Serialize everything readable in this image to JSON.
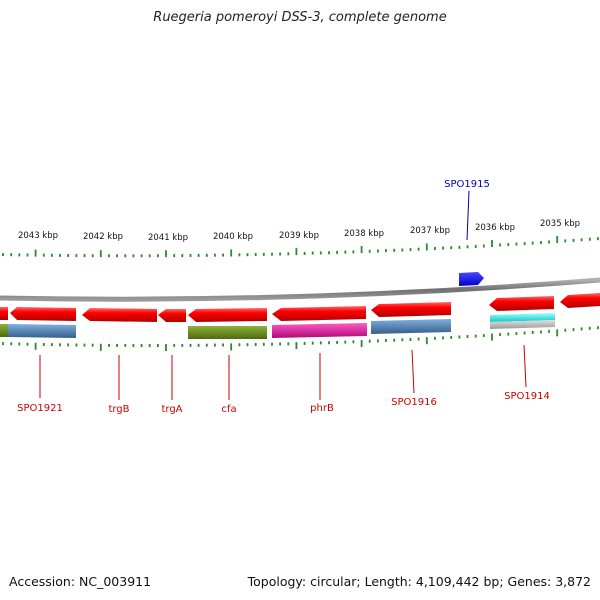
{
  "title": "Ruegeria pomeroyi DSS-3, complete genome",
  "footer": {
    "accession": "Accession: NC_003911",
    "topology": "Topology: circular; Length: 4,109,442 bp; Genes: 3,872"
  },
  "ruler_labels": [
    "2043 kbp",
    "2042 kbp",
    "2041 kbp",
    "2040 kbp",
    "2039 kbp",
    "2038 kbp",
    "2037 kbp",
    "2036 kbp",
    "2035 kbp"
  ],
  "genes_top": [
    {
      "label": "SPO1915",
      "color": "#1a1aee",
      "label_color": "#0000aa"
    }
  ],
  "genes_bottom": [
    {
      "label": "SPO1921",
      "label_color": "#cc0000"
    },
    {
      "label": "trgB",
      "label_color": "#cc0000"
    },
    {
      "label": "trgA",
      "label_color": "#cc0000"
    },
    {
      "label": "cfa",
      "label_color": "#cc0000"
    },
    {
      "label": "phrB",
      "label_color": "#cc0000"
    },
    {
      "label": "SPO1916",
      "label_color": "#cc0000"
    },
    {
      "label": "SPO1914",
      "label_color": "#cc0000"
    }
  ],
  "colors": {
    "gene_red": "#ee0000",
    "backbone": "#888888",
    "tick_green": "#2a8a2a",
    "steelblue": "#4a7fb0",
    "olive": "#6a8a1a",
    "magenta": "#e0169a",
    "cyan": "#18e8e8",
    "gray": "#b8b8b8"
  }
}
